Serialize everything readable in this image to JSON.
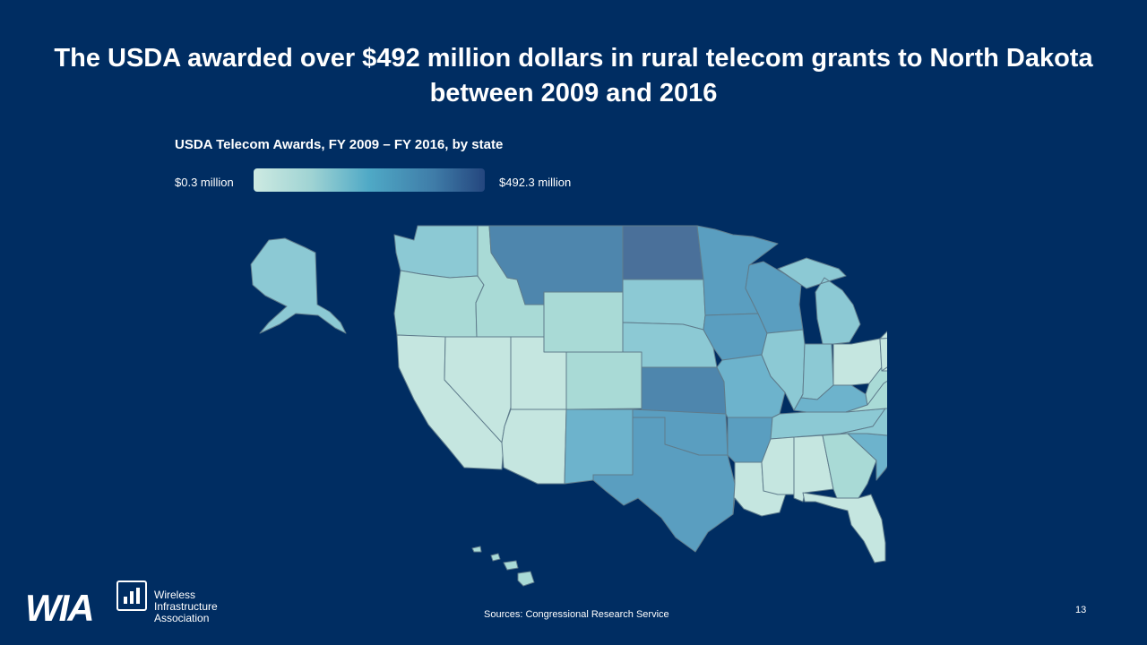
{
  "slide": {
    "title": "The USDA awarded over $492 million dollars in rural telecom grants to North Dakota between 2009 and 2016",
    "source": "Sources: Congressional Research Service",
    "page_number": "13"
  },
  "logo": {
    "mark": "WIA",
    "lines": [
      "Wireless",
      "Infrastructure",
      "Association"
    ]
  },
  "map_data": {
    "title": "USDA Telecom Awards, FY 2009 – FY 2016, by state",
    "legend": {
      "min_label": "$0.3 million",
      "max_label": "$492.3 million"
    },
    "color_scale": [
      "#cdeae2",
      "#9fd3d3",
      "#4fa9c6",
      "#3f7ca8",
      "#24467e"
    ],
    "shading_levels": {
      "very_low": "#c5e6e0",
      "low": "#a9dad6",
      "medium_low": "#8cc9d4",
      "medium": "#6db3cc",
      "medium_high": "#5a9ec0",
      "high": "#4e86ad",
      "highest": "#4a709a"
    },
    "states": [
      {
        "id": "AK",
        "level": "medium_low"
      },
      {
        "id": "HI",
        "level": "low"
      },
      {
        "id": "WA",
        "level": "medium_low"
      },
      {
        "id": "OR",
        "level": "low"
      },
      {
        "id": "CA",
        "level": "very_low"
      },
      {
        "id": "ID",
        "level": "low"
      },
      {
        "id": "NV",
        "level": "very_low"
      },
      {
        "id": "MT",
        "level": "high"
      },
      {
        "id": "WY",
        "level": "low"
      },
      {
        "id": "UT",
        "level": "very_low"
      },
      {
        "id": "AZ",
        "level": "very_low"
      },
      {
        "id": "CO",
        "level": "low"
      },
      {
        "id": "NM",
        "level": "medium"
      },
      {
        "id": "ND",
        "level": "highest"
      },
      {
        "id": "SD",
        "level": "medium_low"
      },
      {
        "id": "NE",
        "level": "medium_low"
      },
      {
        "id": "KS",
        "level": "high"
      },
      {
        "id": "OK",
        "level": "medium_high"
      },
      {
        "id": "TX",
        "level": "medium_high"
      },
      {
        "id": "MN",
        "level": "medium_high"
      },
      {
        "id": "IA",
        "level": "medium_high"
      },
      {
        "id": "MO",
        "level": "medium"
      },
      {
        "id": "AR",
        "level": "medium_high"
      },
      {
        "id": "LA",
        "level": "very_low"
      },
      {
        "id": "WI",
        "level": "medium_high"
      },
      {
        "id": "IL",
        "level": "medium_low"
      },
      {
        "id": "MI",
        "level": "medium_low"
      },
      {
        "id": "IN",
        "level": "medium_low"
      },
      {
        "id": "OH",
        "level": "very_low"
      },
      {
        "id": "KY",
        "level": "medium"
      },
      {
        "id": "TN",
        "level": "medium_low"
      },
      {
        "id": "MS",
        "level": "very_low"
      },
      {
        "id": "AL",
        "level": "very_low"
      },
      {
        "id": "GA",
        "level": "low"
      },
      {
        "id": "FL",
        "level": "very_low"
      },
      {
        "id": "SC",
        "level": "medium"
      },
      {
        "id": "NC",
        "level": "medium_low"
      },
      {
        "id": "VA",
        "level": "low"
      },
      {
        "id": "WV",
        "level": "low"
      },
      {
        "id": "PA",
        "level": "very_low"
      },
      {
        "id": "NY",
        "level": "very_low"
      },
      {
        "id": "VT",
        "level": "medium_low"
      },
      {
        "id": "NH",
        "level": "very_low"
      },
      {
        "id": "ME",
        "level": "very_low"
      },
      {
        "id": "MA",
        "level": "very_low"
      },
      {
        "id": "NJ",
        "level": "very_low"
      },
      {
        "id": "MD",
        "level": "very_low"
      }
    ]
  }
}
